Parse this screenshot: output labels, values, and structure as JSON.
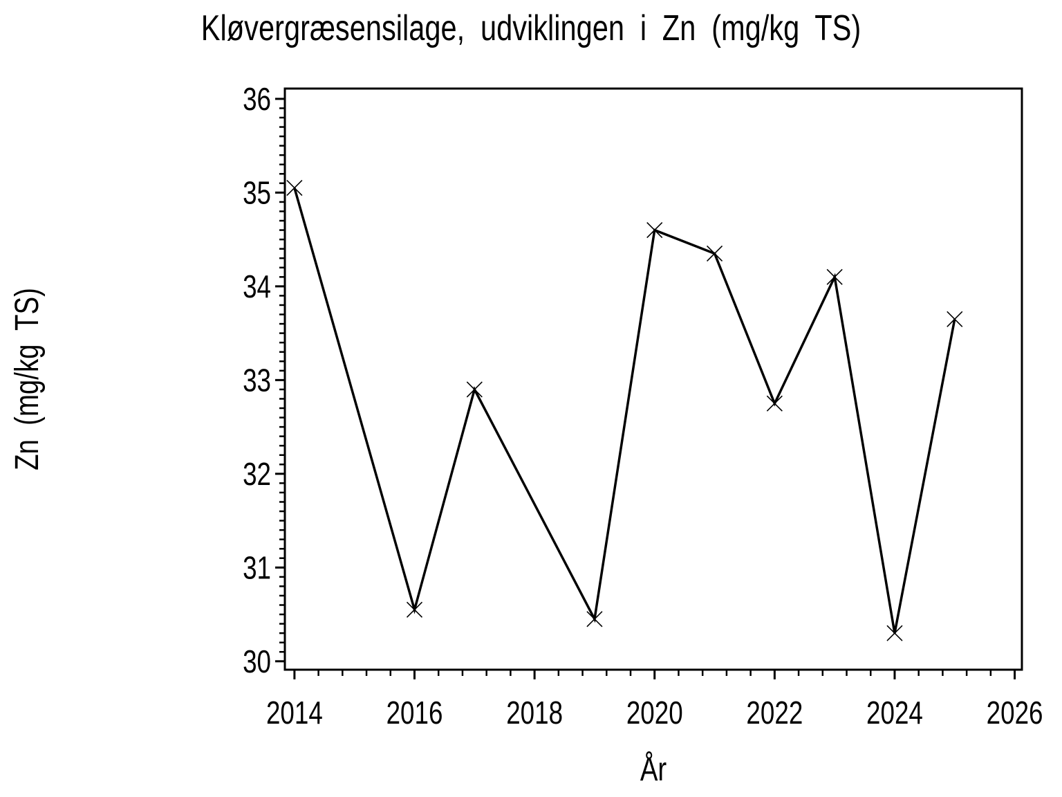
{
  "chart_data": {
    "type": "line",
    "title": "Kløvergræsensilage, udviklingen i Zn (mg/kg TS)",
    "xlabel": "År",
    "ylabel": "Zn (mg/kg TS)",
    "series": [
      {
        "name": "Zn",
        "x": [
          2014,
          2016,
          2017,
          2019,
          2020,
          2021,
          2022,
          2023,
          2024,
          2025
        ],
        "y": [
          35.05,
          30.55,
          32.9,
          30.45,
          34.6,
          34.35,
          32.75,
          34.1,
          30.3,
          33.65
        ]
      }
    ],
    "marker": "x-cross",
    "line_color": "#000000",
    "background_color": "#ffffff",
    "xlim": [
      2013.84,
      2026.12
    ],
    "ylim": [
      29.91,
      36.11
    ],
    "x_ticks": {
      "major_start": 2014,
      "major_step": 2,
      "major_end": 2026,
      "minor_step": 0.4,
      "labels": [
        "2014",
        "2016",
        "2018",
        "2020",
        "2022",
        "2024",
        "2026"
      ]
    },
    "y_ticks": {
      "major_start": 30,
      "major_step": 1,
      "major_end": 36,
      "minor_step": 0.1,
      "labels": [
        "30",
        "31",
        "32",
        "33",
        "34",
        "35",
        "36"
      ]
    },
    "grid": false,
    "legend": "none"
  }
}
